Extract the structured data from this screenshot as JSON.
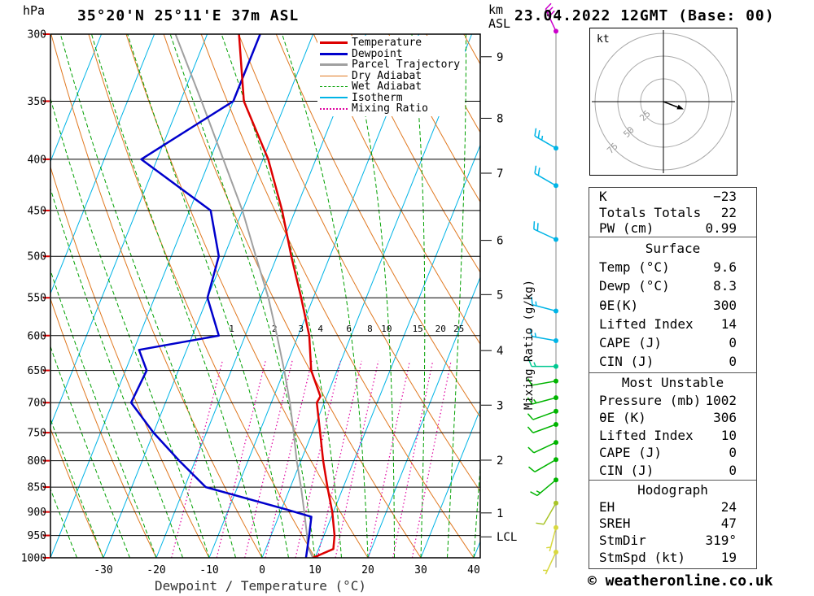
{
  "meta": {
    "station_title": "35°20'N 25°11'E 37m ASL",
    "datetime_title": "23.04.2022 12GMT (Base: 00)",
    "copyright": "© weatheronline.co.uk",
    "pressure_unit": "hPa",
    "km_axis_title": "km\nASL",
    "mixing_axis_title": "Mixing Ratio (g/kg)",
    "x_axis_title": "Dewpoint / Temperature (°C)"
  },
  "chart_data": {
    "type": "line",
    "variant": "skew-t-log-p",
    "pressure_range_hPa": [
      300,
      1000
    ],
    "temp_axis_range_c": [
      -40,
      41
    ],
    "pressure_levels": [
      300,
      350,
      400,
      450,
      500,
      550,
      600,
      650,
      700,
      750,
      800,
      850,
      900,
      950,
      1000
    ],
    "temp_ticks": [
      -30,
      -20,
      -10,
      0,
      10,
      20,
      30,
      40
    ],
    "grid": {
      "isotherms": {
        "min": -120,
        "max": 40,
        "step": 10
      },
      "dry_adiabats": {
        "min": -30,
        "max": 200,
        "step": 10
      },
      "wet_adiabats": {
        "min": -40,
        "max": 40,
        "step": 5
      }
    },
    "mixing_ratio_values": [
      1,
      2,
      3,
      4,
      6,
      8,
      10,
      15,
      20,
      25
    ],
    "temperature_profile": [
      [
        1000,
        9.6
      ],
      [
        980,
        12.8
      ],
      [
        950,
        12.0
      ],
      [
        900,
        9.8
      ],
      [
        850,
        7.0
      ],
      [
        800,
        4.2
      ],
      [
        750,
        1.5
      ],
      [
        700,
        -1.4
      ],
      [
        690,
        -1.2
      ],
      [
        650,
        -4.9
      ],
      [
        600,
        -7.9
      ],
      [
        550,
        -12.3
      ],
      [
        500,
        -17.3
      ],
      [
        450,
        -22.5
      ],
      [
        400,
        -29.0
      ],
      [
        350,
        -38.0
      ],
      [
        300,
        -44.0
      ]
    ],
    "dewpoint_profile": [
      [
        1000,
        8.3
      ],
      [
        950,
        7.2
      ],
      [
        910,
        6.2
      ],
      [
        895,
        1.0
      ],
      [
        850,
        -16.0
      ],
      [
        800,
        -23.0
      ],
      [
        750,
        -30.0
      ],
      [
        700,
        -36.5
      ],
      [
        650,
        -36.0
      ],
      [
        620,
        -39.0
      ],
      [
        600,
        -25.0
      ],
      [
        550,
        -30.0
      ],
      [
        500,
        -31.0
      ],
      [
        450,
        -36.0
      ],
      [
        400,
        -53.0
      ],
      [
        350,
        -40.0
      ],
      [
        300,
        -40.0
      ]
    ],
    "parcel_profile": [
      [
        1000,
        9.6
      ],
      [
        975,
        7.8
      ],
      [
        950,
        6.8
      ],
      [
        900,
        4.5
      ],
      [
        850,
        2.0
      ],
      [
        800,
        -0.8
      ],
      [
        750,
        -3.5
      ],
      [
        700,
        -6.5
      ],
      [
        650,
        -10.0
      ],
      [
        600,
        -14.0
      ],
      [
        550,
        -18.5
      ],
      [
        500,
        -24.0
      ],
      [
        450,
        -30.0
      ],
      [
        400,
        -37.5
      ],
      [
        350,
        -46.0
      ],
      [
        300,
        -56.0
      ]
    ],
    "km_marks": [
      {
        "label": "9",
        "p": 316
      },
      {
        "label": "8",
        "p": 364
      },
      {
        "label": "7",
        "p": 413
      },
      {
        "label": "6",
        "p": 482
      },
      {
        "label": "5",
        "p": 546
      },
      {
        "label": "4",
        "p": 621
      },
      {
        "label": "3",
        "p": 704
      },
      {
        "label": "2",
        "p": 799
      },
      {
        "label": "1",
        "p": 902
      },
      {
        "label": "LCL",
        "p": 953
      }
    ],
    "wind_barbs": [
      {
        "p": 298,
        "color": "#cc00cc",
        "dir": 335,
        "speed": 30
      },
      {
        "p": 390,
        "color": "#00b4e6",
        "dir": 300,
        "speed": 25
      },
      {
        "p": 425,
        "color": "#00b4e6",
        "dir": 300,
        "speed": 20
      },
      {
        "p": 481,
        "color": "#00b4e6",
        "dir": 295,
        "speed": 20
      },
      {
        "p": 567,
        "color": "#00b4e6",
        "dir": 285,
        "speed": 15
      },
      {
        "p": 607,
        "color": "#00b4e6",
        "dir": 280,
        "speed": 15
      },
      {
        "p": 644,
        "color": "#00c890",
        "dir": 270,
        "speed": 15
      },
      {
        "p": 666,
        "color": "#00b400",
        "dir": 260,
        "speed": 10
      },
      {
        "p": 692,
        "color": "#00b400",
        "dir": 255,
        "speed": 15
      },
      {
        "p": 714,
        "color": "#00b400",
        "dir": 250,
        "speed": 10
      },
      {
        "p": 736,
        "color": "#00b400",
        "dir": 250,
        "speed": 10
      },
      {
        "p": 767,
        "color": "#00b400",
        "dir": 245,
        "speed": 10
      },
      {
        "p": 798,
        "color": "#00b400",
        "dir": 240,
        "speed": 10
      },
      {
        "p": 836,
        "color": "#00b400",
        "dir": 230,
        "speed": 15
      },
      {
        "p": 882,
        "color": "#a8c428",
        "dir": 210,
        "speed": 10
      },
      {
        "p": 933,
        "color": "#d8d840",
        "dir": 195,
        "speed": 7
      },
      {
        "p": 987,
        "color": "#d8d840",
        "dir": 205,
        "speed": 5
      }
    ],
    "legend": [
      {
        "label": "Temperature",
        "color": "#dd0000",
        "dash": "solid",
        "weight": 3
      },
      {
        "label": "Dewpoint",
        "color": "#0000cc",
        "dash": "solid",
        "weight": 3
      },
      {
        "label": "Parcel Trajectory",
        "color": "#a0a0a0",
        "dash": "solid",
        "weight": 3
      },
      {
        "label": "Dry Adiabat",
        "color": "#e07820",
        "dash": "solid",
        "weight": 1
      },
      {
        "label": "Wet Adiabat",
        "color": "#00a000",
        "dash": "dashed",
        "weight": 1
      },
      {
        "label": "Isotherm",
        "color": "#00b4e6",
        "dash": "solid",
        "weight": 2
      },
      {
        "label": "Mixing Ratio",
        "color": "#e000a0",
        "dash": "dotted",
        "weight": 2
      }
    ],
    "colors": {
      "temperature": "#dd0000",
      "dewpoint": "#0000cc",
      "parcel": "#a0a0a0",
      "dry_adiabat": "#e07820",
      "wet_adiabat": "#00a000",
      "isotherm": "#00b4e6",
      "mixing_ratio": "#e000a0",
      "isobar": "#000000",
      "axis_tick": "#dd0000",
      "wind_column": "#888888"
    }
  },
  "hodograph": {
    "unit": "kt",
    "ring_labels": [
      "25",
      "50",
      "75"
    ],
    "rings_kt": [
      25,
      50,
      75
    ]
  },
  "table": {
    "indices": [
      {
        "label": "K",
        "value": "−23"
      },
      {
        "label": "Totals Totals",
        "value": "22"
      },
      {
        "label": "PW (cm)",
        "value": "0.99"
      }
    ],
    "surface": {
      "title": "Surface",
      "rows": [
        {
          "label": "Temp (°C)",
          "value": "9.6"
        },
        {
          "label": "Dewp (°C)",
          "value": "8.3"
        },
        {
          "label": "θE(K)",
          "value": "300"
        },
        {
          "label": "Lifted Index",
          "value": "14"
        },
        {
          "label": "CAPE (J)",
          "value": "0"
        },
        {
          "label": "CIN (J)",
          "value": "0"
        }
      ]
    },
    "most_unstable": {
      "title": "Most Unstable",
      "rows": [
        {
          "label": "Pressure (mb)",
          "value": "1002"
        },
        {
          "label": "θE (K)",
          "value": "306"
        },
        {
          "label": "Lifted Index",
          "value": "10"
        },
        {
          "label": "CAPE (J)",
          "value": "0"
        },
        {
          "label": "CIN (J)",
          "value": "0"
        }
      ]
    },
    "hodograph_stats": {
      "title": "Hodograph",
      "rows": [
        {
          "label": "EH",
          "value": "24"
        },
        {
          "label": "SREH",
          "value": "47"
        },
        {
          "label": "StmDir",
          "value": "319°"
        },
        {
          "label": "StmSpd (kt)",
          "value": "19"
        }
      ]
    }
  }
}
